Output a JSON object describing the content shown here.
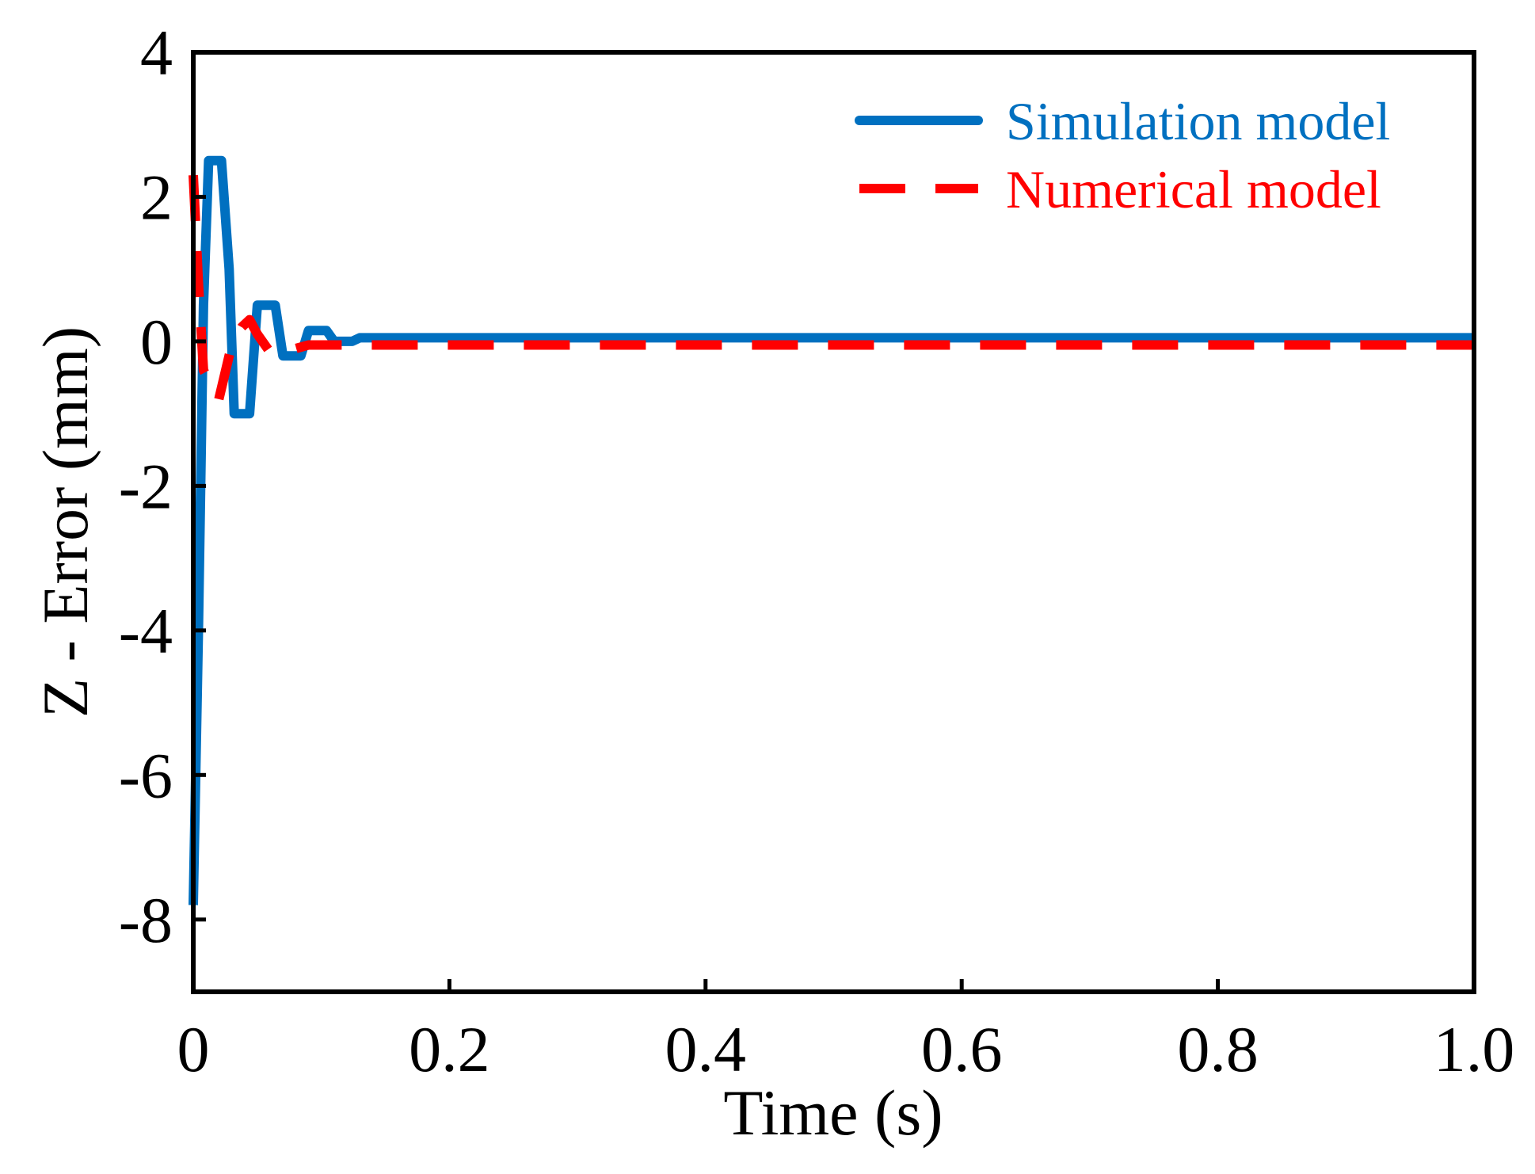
{
  "chart_data": {
    "type": "line",
    "title": "",
    "xlabel": "Time (s)",
    "ylabel": "Z - Error (mm)",
    "xlim": [
      0,
      1.0
    ],
    "ylim": [
      -9,
      4
    ],
    "xticks": [
      0,
      0.2,
      0.4,
      0.6,
      0.8,
      1.0
    ],
    "xtick_labels": [
      "0",
      "0.2",
      "0.4",
      "0.6",
      "0.8",
      "1.0"
    ],
    "yticks": [
      -8,
      -6,
      -4,
      -2,
      0,
      2,
      4
    ],
    "ytick_labels": [
      "-8",
      "-6",
      "-4",
      "-2",
      "0",
      "2",
      "4"
    ],
    "grid": false,
    "legend_position": "top-right",
    "series": [
      {
        "name": "Simulation model",
        "color": "#0070c0",
        "style": "solid",
        "x": [
          0,
          0.004,
          0.008,
          0.012,
          0.018,
          0.022,
          0.028,
          0.032,
          0.038,
          0.044,
          0.05,
          0.058,
          0.064,
          0.07,
          0.078,
          0.084,
          0.09,
          0.098,
          0.104,
          0.11,
          0.118,
          0.124,
          0.13,
          0.14,
          0.15,
          0.16,
          0.18,
          0.2,
          0.3,
          0.4,
          0.5,
          0.6,
          0.7,
          0.8,
          0.9,
          1.0
        ],
        "y": [
          -7.8,
          -4.0,
          0.5,
          2.5,
          2.5,
          2.5,
          1.0,
          -1.0,
          -1.0,
          -1.0,
          0.5,
          0.5,
          0.5,
          -0.2,
          -0.2,
          -0.2,
          0.15,
          0.15,
          0.15,
          0.0,
          0.0,
          0.0,
          0.05,
          0.05,
          0.05,
          0.05,
          0.05,
          0.05,
          0.05,
          0.05,
          0.05,
          0.05,
          0.05,
          0.05,
          0.05,
          0.05
        ]
      },
      {
        "name": "Numerical model",
        "color": "#ff0000",
        "style": "dashed",
        "x": [
          0,
          0.004,
          0.008,
          0.014,
          0.02,
          0.024,
          0.03,
          0.038,
          0.044,
          0.05,
          0.06,
          0.07,
          0.08,
          0.09,
          0.1,
          0.12,
          0.14,
          0.2,
          0.3,
          0.4,
          0.5,
          0.6,
          0.7,
          0.8,
          0.9,
          1.0
        ],
        "y": [
          2.3,
          0.8,
          -0.4,
          -0.6,
          -0.8,
          -0.5,
          -0.05,
          0.2,
          0.3,
          0.1,
          -0.15,
          -0.15,
          -0.1,
          -0.05,
          -0.05,
          -0.05,
          -0.05,
          -0.05,
          -0.05,
          -0.05,
          -0.05,
          -0.05,
          -0.05,
          -0.05,
          -0.05,
          -0.05
        ]
      }
    ]
  }
}
